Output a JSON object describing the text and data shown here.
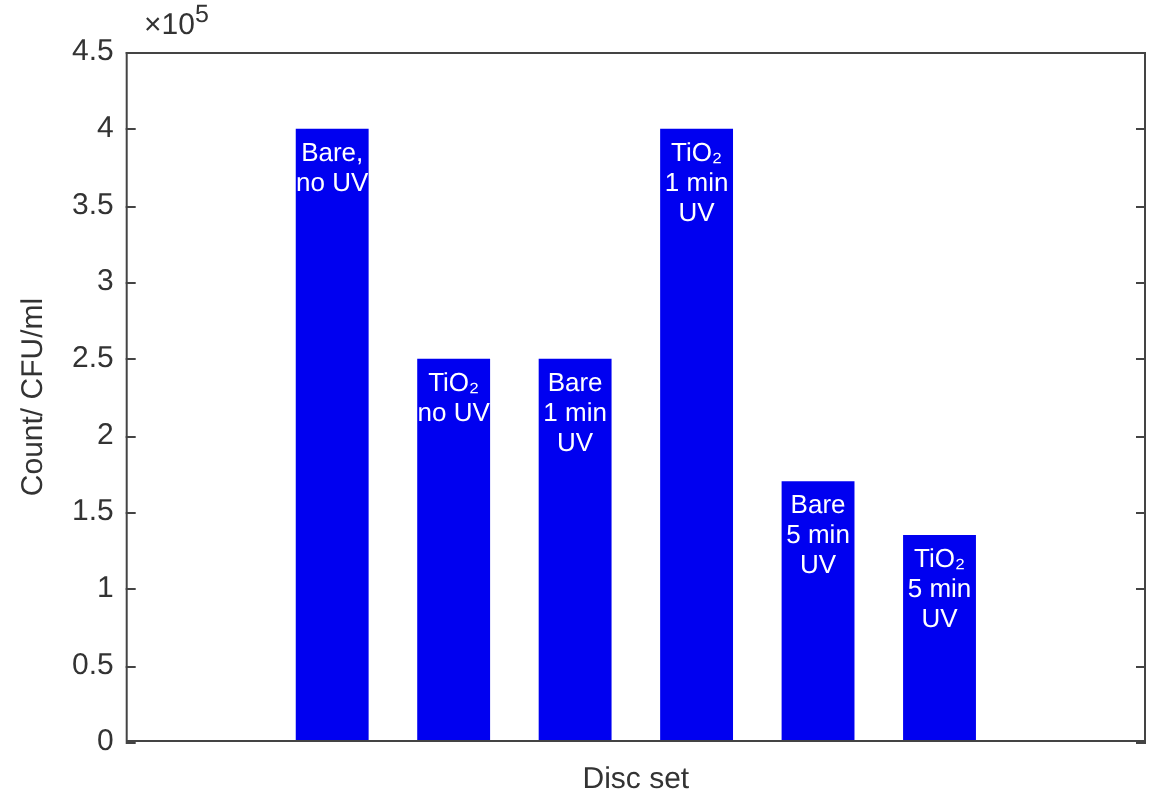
{
  "chart_data": {
    "type": "bar",
    "xlabel": "Disc set",
    "ylabel": "Count/ CFU/ml",
    "categories": [
      "Bare,\nno UV",
      "TiO₂\nno UV",
      "Bare\n1 min\nUV",
      "TiO₂\n1 min\nUV",
      "Bare\n5 min\nUV",
      "TiO₂\n5 min\nUV"
    ],
    "values": [
      4,
      2.5,
      2.5,
      4,
      1.7,
      1.35
    ],
    "color": "#0000f0",
    "ylim": [
      0,
      4.5
    ],
    "yticks": [
      0,
      0.5,
      1,
      1.5,
      2,
      2.5,
      3,
      3.5,
      4,
      4.5
    ],
    "annotations": [
      "×10$^{5}$"
    ],
    "grid": false,
    "legend": false
  }
}
